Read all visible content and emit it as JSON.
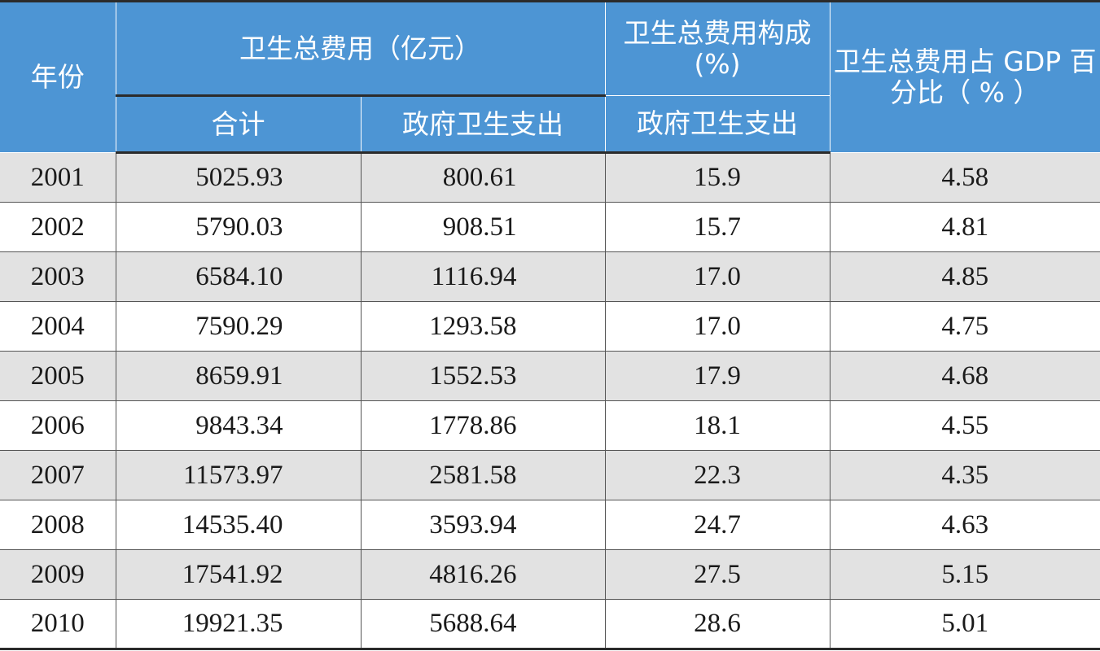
{
  "table": {
    "headers": {
      "year": "年份",
      "total_group": "卫生总费用（亿元）",
      "total": "合计",
      "gov_spend": "政府卫生支出",
      "composition_group": "卫生总费用构成 (%)",
      "composition_gov": "政府卫生支出",
      "gdp_share": "卫生总费用占 GDP 百分比（ % ）"
    },
    "rows": [
      {
        "year": "2001",
        "total": "5025.93",
        "gov": "800.61",
        "comp": "15.9",
        "gdp": "4.58"
      },
      {
        "year": "2002",
        "total": "5790.03",
        "gov": "908.51",
        "comp": "15.7",
        "gdp": "4.81"
      },
      {
        "year": "2003",
        "total": "6584.10",
        "gov": "1116.94",
        "comp": "17.0",
        "gdp": "4.85"
      },
      {
        "year": "2004",
        "total": "7590.29",
        "gov": "1293.58",
        "comp": "17.0",
        "gdp": "4.75"
      },
      {
        "year": "2005",
        "total": "8659.91",
        "gov": "1552.53",
        "comp": "17.9",
        "gdp": "4.68"
      },
      {
        "year": "2006",
        "total": "9843.34",
        "gov": "1778.86",
        "comp": "18.1",
        "gdp": "4.55"
      },
      {
        "year": "2007",
        "total": "11573.97",
        "gov": "2581.58",
        "comp": "22.3",
        "gdp": "4.35"
      },
      {
        "year": "2008",
        "total": "14535.40",
        "gov": "3593.94",
        "comp": "24.7",
        "gdp": "4.63"
      },
      {
        "year": "2009",
        "total": "17541.92",
        "gov": "4816.26",
        "comp": "27.5",
        "gdp": "5.15"
      },
      {
        "year": "2010",
        "total": "19921.35",
        "gov": "5688.64",
        "comp": "28.6",
        "gdp": "5.01"
      }
    ]
  },
  "colors": {
    "header_bg": "#4d95d4",
    "header_text": "#ffffff",
    "stripe": "#e2e2e2"
  }
}
